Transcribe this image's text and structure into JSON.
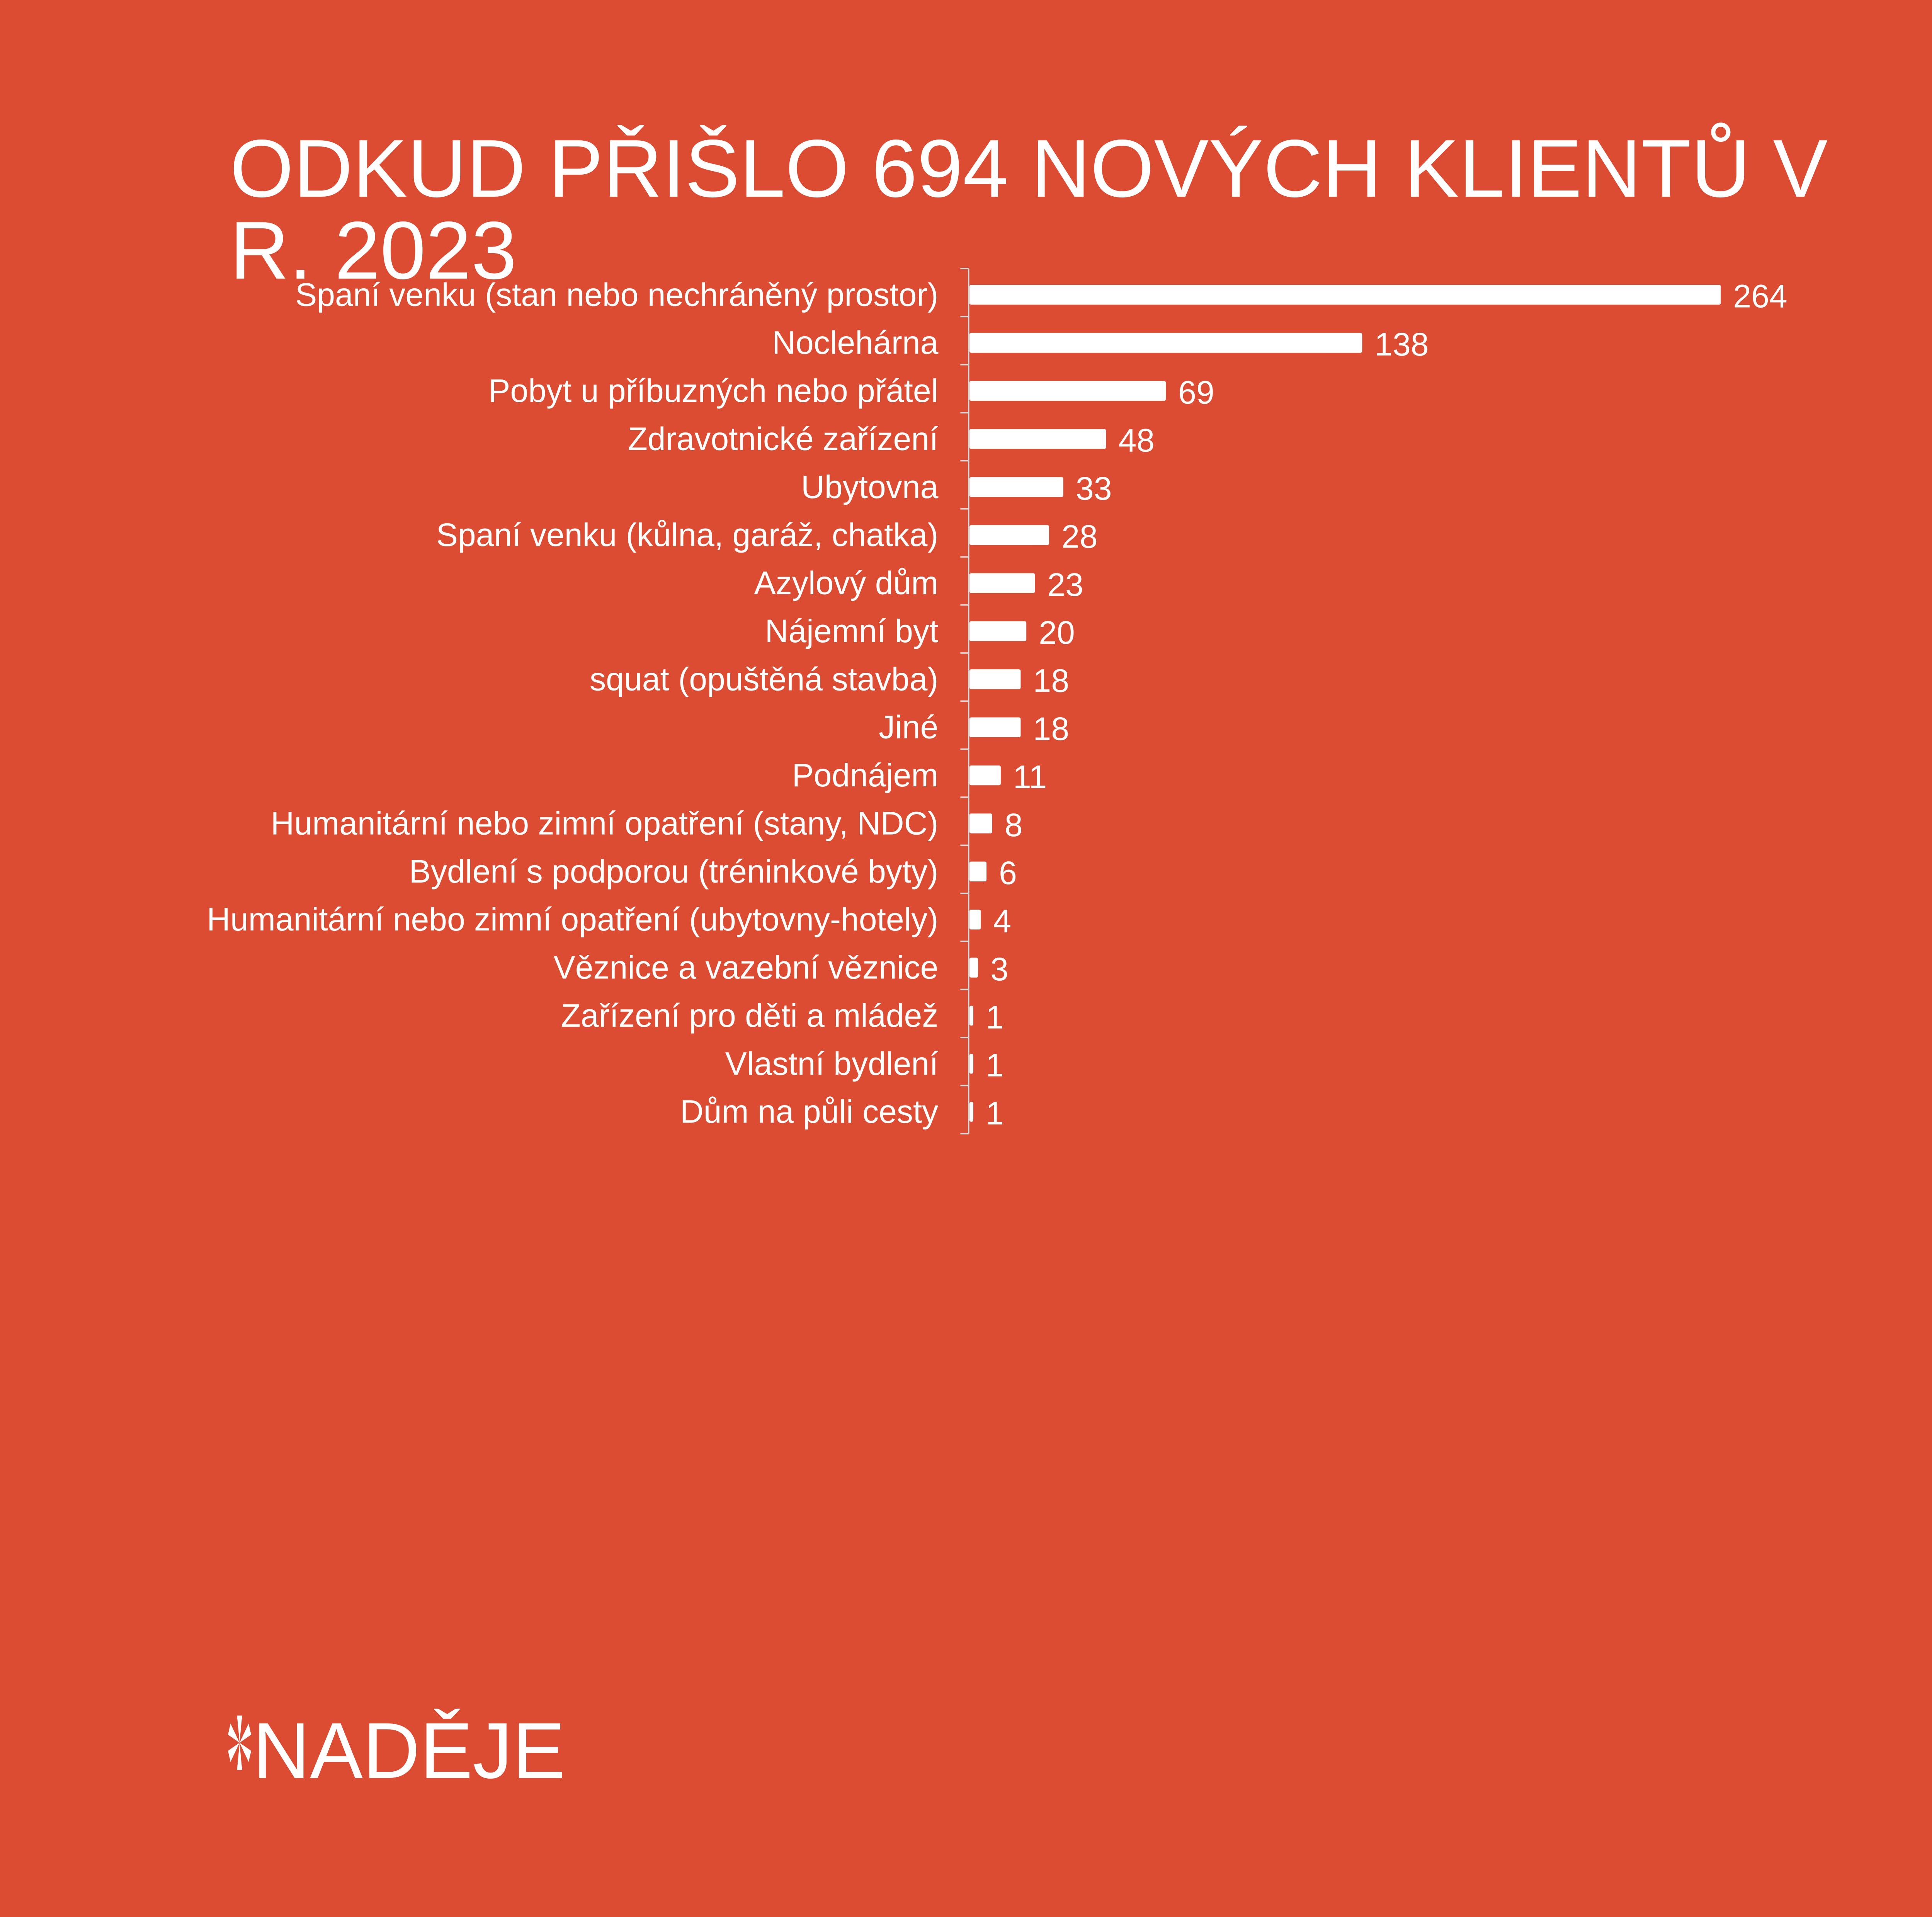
{
  "chart_data": {
    "type": "bar",
    "orientation": "horizontal",
    "title": "ODKUD PŘIŠLO 694 NOVÝCH KLIENTŮ V R. 2023",
    "categories": [
      "Spaní venku (stan nebo nechráněný prostor)",
      "Noclehárna",
      "Pobyt u příbuzných nebo přátel",
      "Zdravotnické zařízení",
      "Ubytovna",
      "Spaní venku (kůlna, garáž, chatka)",
      "Azylový dům",
      "Nájemní byt",
      "squat (opuštěná stavba)",
      "Jiné",
      "Podnájem",
      "Humanitární nebo zimní opatření (stany, NDC)",
      "Bydlení s podporou (tréninkové byty)",
      "Humanitární nebo zimní opatření (ubytovny-hotely)",
      "Věznice a vazební věznice",
      "Zařízení pro děti a mládež",
      "Vlastní bydlení",
      "Dům na půli cesty"
    ],
    "values": [
      264,
      138,
      69,
      48,
      33,
      28,
      23,
      20,
      18,
      18,
      11,
      8,
      6,
      4,
      3,
      1,
      1,
      1
    ],
    "data_labels": true,
    "grid": false,
    "xlim": [
      0,
      264
    ],
    "bar_color": "#FFFFFF",
    "background_color": "#DC4C33"
  },
  "logo": {
    "text": "*NADĚJE"
  }
}
